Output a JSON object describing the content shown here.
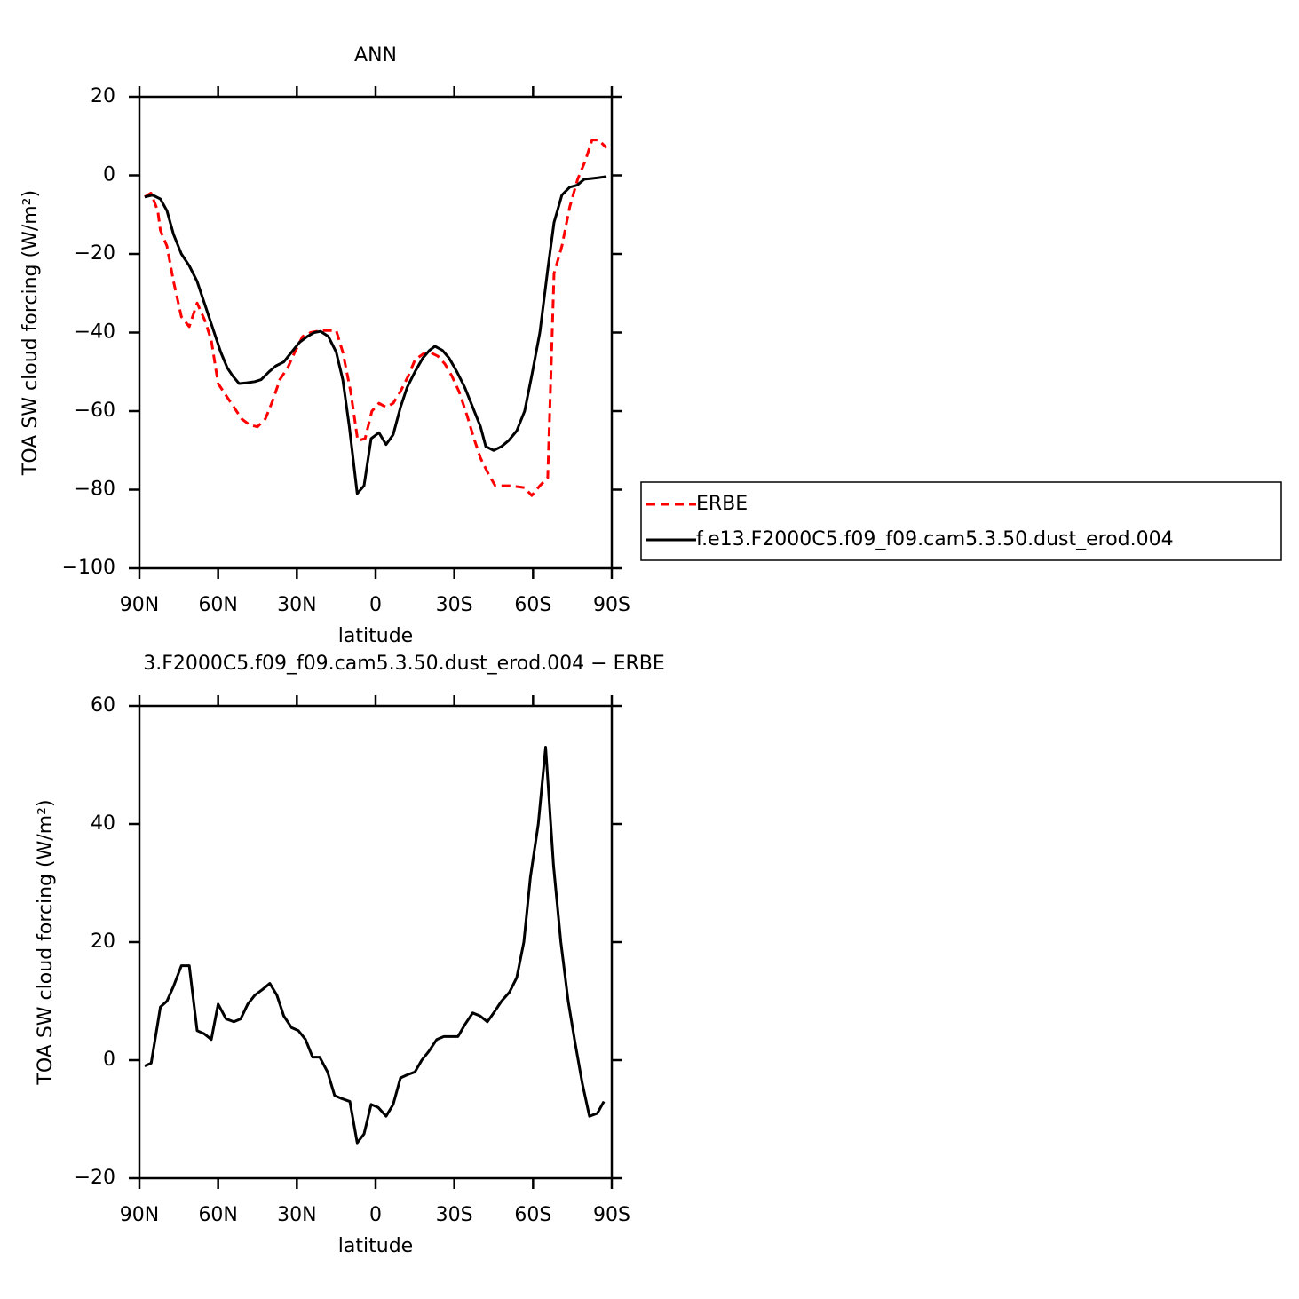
{
  "chart_data": [
    {
      "type": "line",
      "title": "ANN",
      "xlabel": "latitude",
      "ylabel": "TOA SW cloud forcing (W/m²)",
      "xlim": [
        90,
        -90
      ],
      "xticks": [
        {
          "value": 90,
          "label": "90N"
        },
        {
          "value": 60,
          "label": "60N"
        },
        {
          "value": 30,
          "label": "30N"
        },
        0,
        {
          "value": -30,
          "label": "30S"
        },
        {
          "value": -60,
          "label": "60S"
        },
        {
          "value": -90,
          "label": "90S"
        }
      ],
      "ylim": [
        -100,
        20
      ],
      "yticks": [
        20,
        0,
        {
          "value": -20,
          "label": "−20"
        },
        {
          "value": -40,
          "label": "−40"
        },
        {
          "value": -60,
          "label": "−60"
        },
        {
          "value": -80,
          "label": "−80"
        },
        {
          "value": -100,
          "label": "−100"
        }
      ],
      "legend": "right",
      "series": [
        {
          "name": "ERBE",
          "color": "#ff0000",
          "dash": true,
          "x": [
            88,
            85.6,
            83,
            82,
            79.5,
            77,
            74,
            71,
            68,
            65,
            62.6,
            60,
            57,
            54,
            51,
            48,
            45,
            42,
            39,
            36.5,
            33.5,
            30.8,
            27.8,
            24.7,
            21,
            15,
            12.5,
            9.5,
            6.8,
            4,
            1.4,
            -1.3,
            -4,
            -6.7,
            -9.5,
            -12.5,
            -15,
            -18,
            -20.6,
            -23.7,
            -26.4,
            -29,
            -31.8,
            -34.8,
            -37.5,
            -40,
            -43,
            -45.6,
            -48.4,
            -51.4,
            -56.8,
            -59.5,
            -62.6,
            -65.6,
            -68,
            -71,
            -74,
            -77,
            -79.8,
            -82.5,
            -85,
            -88
          ],
          "values": [
            -5.5,
            -4.5,
            -9,
            -14,
            -18,
            -27,
            -36,
            -38.5,
            -32.5,
            -37,
            -42,
            -53,
            -56,
            -59,
            -62,
            -63.5,
            -64,
            -62,
            -57,
            -52,
            -49,
            -45,
            -41,
            -40,
            -39.5,
            -39.5,
            -45,
            -55,
            -67.5,
            -67,
            -60,
            -58,
            -59,
            -58,
            -55,
            -51,
            -47,
            -45.5,
            -45,
            -46,
            -48,
            -51,
            -55,
            -61,
            -67,
            -72,
            -76,
            -79,
            -79,
            -79,
            -79.5,
            -81.5,
            -79,
            -77,
            -25,
            -18,
            -8,
            -1,
            3.5,
            9,
            9,
            7
          ]
        },
        {
          "name": "f.e13.F2000C5.f09_f09.cam5.3.50.dust_erod.004",
          "color": "#000000",
          "dash": false,
          "x": [
            88,
            85,
            82,
            79.5,
            77,
            74,
            71,
            68,
            65,
            62,
            59,
            56.5,
            54.5,
            52,
            49,
            46,
            43.6,
            40.6,
            38,
            35,
            32,
            29,
            26,
            23.4,
            21,
            18,
            15,
            12.5,
            10,
            7,
            4.4,
            1.7,
            -1.3,
            -4,
            -6.7,
            -9.5,
            -12,
            -15,
            -18,
            -20.6,
            -22.6,
            -25.4,
            -28,
            -31,
            -34,
            -37,
            -40,
            -42,
            -45,
            -48,
            -50.7,
            -53.8,
            -56.8,
            -59.5,
            -62.6,
            -65.6,
            -68,
            -71,
            -74,
            -76.8,
            -79.5,
            -82.5,
            -85,
            -88
          ],
          "values": [
            -5.5,
            -5,
            -6,
            -9,
            -15,
            -20,
            -23,
            -27,
            -33,
            -39,
            -45,
            -49,
            -51,
            -53,
            -52.8,
            -52.5,
            -52,
            -50,
            -48.5,
            -47.5,
            -45,
            -42.5,
            -41,
            -40,
            -39.7,
            -41,
            -45,
            -52,
            -64,
            -81,
            -79,
            -67,
            -65.5,
            -68.5,
            -66,
            -59,
            -54,
            -50,
            -46.5,
            -44.5,
            -43.5,
            -44.5,
            -46.5,
            -50,
            -54,
            -59,
            -64,
            -69,
            -70,
            -69,
            -67.5,
            -65,
            -60,
            -51,
            -40,
            -24,
            -12,
            -5,
            -3,
            -2.5,
            -1,
            -0.8,
            -0.6,
            -0.3
          ]
        }
      ]
    },
    {
      "type": "line",
      "title": "3.F2000C5.f09_f09.cam5.3.50.dust_erod.004 − ERBE",
      "xlabel": "latitude",
      "ylabel": "TOA SW cloud forcing (W/m²)",
      "xlim": [
        90,
        -90
      ],
      "xticks": [
        {
          "value": 90,
          "label": "90N"
        },
        {
          "value": 60,
          "label": "60N"
        },
        {
          "value": 30,
          "label": "30N"
        },
        0,
        {
          "value": -30,
          "label": "30S"
        },
        {
          "value": -60,
          "label": "60S"
        },
        {
          "value": -90,
          "label": "90S"
        }
      ],
      "ylim": [
        -20,
        60
      ],
      "yticks": [
        60,
        40,
        20,
        0,
        {
          "value": -20,
          "label": "−20"
        }
      ],
      "series": [
        {
          "color": "#000000",
          "dash": false,
          "x": [
            88,
            85.5,
            82,
            79.5,
            77,
            74,
            71,
            68,
            65.4,
            62.6,
            60,
            57,
            54,
            51.4,
            48.7,
            46,
            43,
            40.3,
            37.6,
            35,
            32,
            29.4,
            26.7,
            24,
            21.3,
            18.3,
            15.6,
            13,
            9.8,
            7,
            4.4,
            1.7,
            -1,
            -4,
            -6.7,
            -9.5,
            -12,
            -15,
            -17.6,
            -20.3,
            -23.3,
            -26,
            -28.7,
            -31.4,
            -34,
            -37,
            -39.8,
            -42.6,
            -45,
            -48,
            -51,
            -53.8,
            -56.5,
            -59,
            -62,
            -64.8,
            -67.8,
            -70.6,
            -73.4,
            -76,
            -78.8,
            -81.5,
            -84.5,
            -87
          ],
          "values": [
            -1,
            -0.5,
            9,
            10,
            12.5,
            16,
            16,
            5,
            4.5,
            3.5,
            9.5,
            7,
            6.5,
            7,
            9.5,
            11,
            12,
            13,
            11,
            7.5,
            5.5,
            5,
            3.5,
            0.5,
            0.5,
            -2,
            -6,
            -6.5,
            -7,
            -14,
            -12.5,
            -7.5,
            -8,
            -9.5,
            -7.5,
            -3,
            -2.5,
            -2,
            0,
            1.5,
            3.5,
            4,
            4,
            4,
            6,
            8,
            7.5,
            6.5,
            8,
            10,
            11.5,
            14,
            20,
            31,
            40,
            53,
            33,
            20,
            10,
            3,
            -4,
            -9.5,
            -9,
            -7
          ]
        }
      ]
    }
  ]
}
